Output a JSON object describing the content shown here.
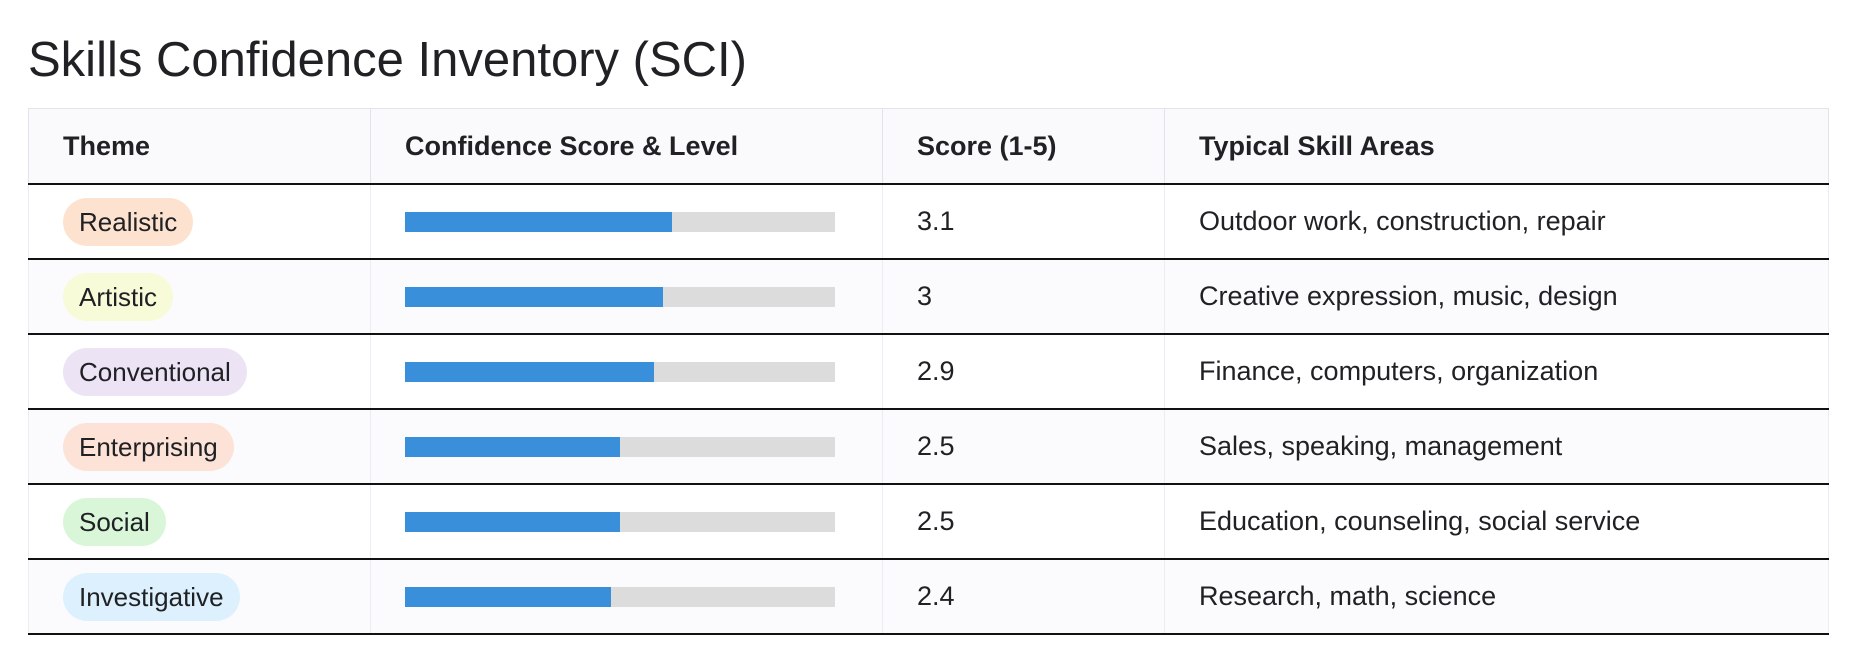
{
  "title": "Skills Confidence Inventory (SCI)",
  "table": {
    "headers": {
      "theme": "Theme",
      "bar": "Confidence Score & Level",
      "score": "Score (1-5)",
      "areas": "Typical Skill Areas"
    },
    "score_max": 5,
    "rows": [
      {
        "theme": "Realistic",
        "pill_color": "#fde3cf",
        "score": 3.1,
        "score_label": "3.1",
        "areas": "Outdoor work, construction, repair"
      },
      {
        "theme": "Artistic",
        "pill_color": "#f7fbd8",
        "score": 3,
        "score_label": "3",
        "areas": "Creative expression, music, design"
      },
      {
        "theme": "Conventional",
        "pill_color": "#ece3f5",
        "score": 2.9,
        "score_label": "2.9",
        "areas": "Finance, computers, organization"
      },
      {
        "theme": "Enterprising",
        "pill_color": "#fde2d8",
        "score": 2.5,
        "score_label": "2.5",
        "areas": "Sales, speaking, management"
      },
      {
        "theme": "Social",
        "pill_color": "#d9f6d9",
        "score": 2.5,
        "score_label": "2.5",
        "areas": "Education, counseling, social service"
      },
      {
        "theme": "Investigative",
        "pill_color": "#dcf1fd",
        "score": 2.4,
        "score_label": "2.4",
        "areas": "Research, math, science"
      }
    ],
    "colors": {
      "bar_fill": "#3a8fdb",
      "bar_track": "#dcdcdc"
    }
  }
}
